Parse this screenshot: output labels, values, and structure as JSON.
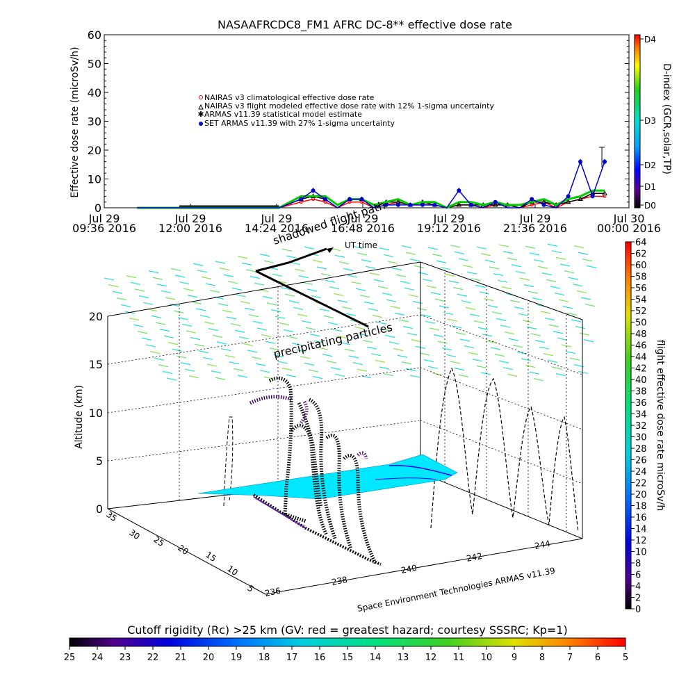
{
  "top_chart": {
    "title": "NASAAFRCDC8_FM1 AFRC DC-8** effective dose rate",
    "ylabel": "Effective dose rate (microSv/h)",
    "yticks": [
      "0",
      "10",
      "20",
      "30",
      "40",
      "50",
      "60"
    ],
    "xticks": [
      {
        "l1": "Jul 29",
        "l2": "09:36 2016"
      },
      {
        "l1": "Jul 29",
        "l2": "12:00 2016"
      },
      {
        "l1": "Jul 29",
        "l2": "14:24 2016"
      },
      {
        "l1": "Jul 29",
        "l2": "16:48 2016"
      },
      {
        "l1": "Jul 29",
        "l2": "19:12 2016"
      },
      {
        "l1": "Jul 29",
        "l2": "21:36 2016"
      },
      {
        "l1": "Jul 30",
        "l2": "00:00 2016"
      }
    ],
    "legend": [
      "NAIRAS v3 climatological effective dose rate",
      "NAIRAS v3 flight modeled effective dose rate with 12% 1-sigma uncertainty",
      "ARMAS v11.39 statistical model estimate",
      "SET ARMAS v11.39 with 27% 1-sigma uncertainty"
    ],
    "dindex_label": "D-index (GCR,solar,TP)",
    "dindex_ticks": [
      "D0",
      "D1",
      "D2",
      "D3",
      "D4"
    ]
  },
  "chart_data": [
    {
      "type": "line",
      "title": "NASAAFRCDC8_FM1 AFRC DC-8** effective dose rate",
      "ylabel": "Effective dose rate (microSv/h)",
      "ylim": [
        0,
        60
      ],
      "x": [
        "10:30",
        "11:30",
        "12:30",
        "13:30",
        "14:24",
        "15:00",
        "15:20",
        "15:40",
        "16:00",
        "16:20",
        "16:40",
        "17:00",
        "17:20",
        "17:40",
        "18:00",
        "18:20",
        "18:40",
        "19:00",
        "19:20",
        "19:40",
        "20:00",
        "20:20",
        "20:40",
        "21:00",
        "21:20",
        "21:40",
        "22:00",
        "22:20",
        "22:40",
        "23:00",
        "23:20"
      ],
      "series": [
        {
          "name": "NAIRAS v3 climatological effective dose rate",
          "color": "#ff0000",
          "values": [
            0,
            0,
            0,
            0,
            0,
            2,
            3,
            2,
            0,
            2,
            2,
            0,
            1,
            2,
            1,
            1,
            1,
            0,
            1,
            1,
            0,
            1,
            1,
            0,
            1,
            2,
            0,
            2,
            3,
            4,
            4
          ]
        },
        {
          "name": "NAIRAS v3 flight modeled effective dose rate with 12% 1-sigma uncertainty",
          "color": "#000000",
          "values": [
            0,
            0,
            0,
            0,
            0,
            3,
            4,
            3,
            0,
            3,
            3,
            0,
            2,
            2,
            1,
            2,
            1,
            0,
            1,
            1,
            1,
            1,
            1,
            0,
            2,
            2,
            1,
            2,
            3,
            5,
            5
          ]
        },
        {
          "name": "ARMAS v11.39 statistical model estimate",
          "color": "#00cc00",
          "values": [
            0,
            0,
            0,
            0,
            0,
            4,
            4,
            4,
            1,
            3,
            3,
            1,
            2,
            3,
            1,
            2,
            2,
            0,
            2,
            2,
            1,
            2,
            1,
            1,
            2,
            3,
            1,
            3,
            4,
            6,
            6
          ]
        },
        {
          "name": "SET ARMAS v11.39 with 27% 1-sigma uncertainty",
          "color": "#0000cc",
          "values": [
            0,
            0,
            0,
            0,
            0,
            3,
            6,
            3,
            0,
            3,
            3,
            0,
            1,
            1,
            1,
            1,
            1,
            0,
            6,
            1,
            0,
            2,
            0,
            0,
            3,
            1,
            0,
            4,
            16,
            4,
            16
          ]
        }
      ]
    },
    {
      "type": "scatter",
      "title": "",
      "xlabel": "Space Environment Technologies ARMAS v11.39",
      "ylabel": "Altitude (km)",
      "zlim": [
        0,
        20
      ],
      "xticks": [
        "236",
        "238",
        "240",
        "242",
        "244"
      ],
      "yticks": [
        "5",
        "10",
        "15",
        "20",
        "25",
        "30",
        "35"
      ],
      "zticks": [
        "0",
        "5",
        "10",
        "15",
        "20"
      ],
      "annotations": [
        "shadowed flight path",
        "precipitating particles",
        "UT time"
      ],
      "colorbar_label": "flight effective dose rate microSv/h",
      "colorbar_ticks": [
        "0",
        "2",
        "4",
        "6",
        "8",
        "10",
        "12",
        "14",
        "16",
        "18",
        "20",
        "22",
        "24",
        "26",
        "28",
        "30",
        "32",
        "34",
        "36",
        "38",
        "40",
        "42",
        "44",
        "46",
        "48",
        "50",
        "52",
        "54",
        "56",
        "58",
        "60",
        "62",
        "64"
      ]
    }
  ],
  "bottom_colorbar": {
    "title": "Cutoff rigidity (Rc) >25 km (GV: red = greatest hazard; courtesy SSSRC; Kp=1)",
    "ticks": [
      "25",
      "24",
      "23",
      "22",
      "21",
      "20",
      "19",
      "18",
      "17",
      "16",
      "15",
      "14",
      "13",
      "12",
      "11",
      "10",
      "9",
      "8",
      "7",
      "6",
      "5"
    ]
  },
  "scene": {
    "xlabel": "Space Environment Technologies ARMAS v11.39",
    "ylabel": "Altitude (km)",
    "annot_shadow": "shadowed flight path",
    "annot_precip": "precipitating particles",
    "annot_ut": "UT time",
    "zticks": [
      "0",
      "5",
      "10",
      "15",
      "20"
    ],
    "lon_ticks": [
      "236",
      "238",
      "240",
      "242",
      "244"
    ],
    "lat_ticks": [
      "5",
      "10",
      "15",
      "20",
      "25",
      "30",
      "35"
    ],
    "cbar_label": "flight effective dose rate microSv/h",
    "cbar_ticks": [
      "0",
      "2",
      "4",
      "6",
      "8",
      "10",
      "12",
      "14",
      "16",
      "18",
      "20",
      "22",
      "24",
      "26",
      "28",
      "30",
      "32",
      "34",
      "36",
      "38",
      "40",
      "42",
      "44",
      "46",
      "48",
      "50",
      "52",
      "54",
      "56",
      "58",
      "60",
      "62",
      "64"
    ]
  }
}
